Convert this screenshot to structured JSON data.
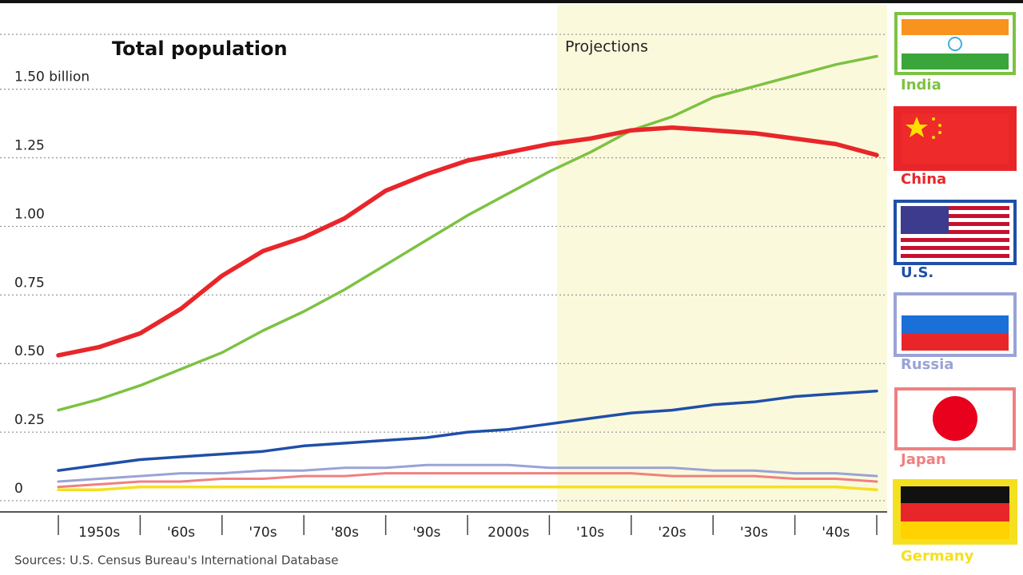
{
  "chart_data": {
    "type": "line",
    "title": "Total population",
    "annotation": "Projections",
    "source": "Sources: U.S. Census Bureau's International Database",
    "categories": [
      null,
      "1950s",
      null,
      "'60s",
      null,
      "'70s",
      null,
      "'80s",
      null,
      "'90s",
      null,
      "2000s",
      null,
      "'10s",
      null,
      "'20s",
      null,
      "'30s",
      null,
      "'40s",
      null
    ],
    "ylim": [
      0,
      1.7
    ],
    "yticks": [
      0,
      0.25,
      {
        "value": 0.5,
        "label": "0.50"
      },
      0.75,
      {
        "value": 1,
        "label": "1.00"
      },
      1.25,
      {
        "value": 1.5,
        "label": "1.50 billion"
      }
    ],
    "grid": true,
    "series": [
      {
        "name": "India",
        "color": "#7dc242",
        "values": [
          0.33,
          0.37,
          0.42,
          0.48,
          0.54,
          0.62,
          0.69,
          0.77,
          0.86,
          0.95,
          1.04,
          1.12,
          1.2,
          1.27,
          1.35,
          1.4,
          1.47,
          1.51,
          1.55,
          1.59,
          1.62
        ]
      },
      {
        "name": "China",
        "color": "#e8262a",
        "values": [
          0.53,
          0.56,
          0.61,
          0.7,
          0.82,
          0.91,
          0.96,
          1.03,
          1.13,
          1.19,
          1.24,
          1.27,
          1.3,
          1.32,
          1.35,
          1.36,
          1.35,
          1.34,
          1.32,
          1.3,
          1.26
        ]
      },
      {
        "name": "U.S.",
        "color": "#1f4fa8",
        "values": [
          0.11,
          0.13,
          0.15,
          0.16,
          0.17,
          0.18,
          0.2,
          0.21,
          0.22,
          0.23,
          0.25,
          0.26,
          0.28,
          0.3,
          0.32,
          0.33,
          0.35,
          0.36,
          0.38,
          0.39,
          0.4
        ]
      },
      {
        "name": "Russia",
        "color": "#9aa3d6",
        "values": [
          0.07,
          0.08,
          0.09,
          0.1,
          0.1,
          0.11,
          0.11,
          0.12,
          0.12,
          0.13,
          0.13,
          0.13,
          0.12,
          0.12,
          0.12,
          0.12,
          0.11,
          0.11,
          0.1,
          0.1,
          0.09
        ]
      },
      {
        "name": "Japan",
        "color": "#f08080",
        "values": [
          0.05,
          0.06,
          0.07,
          0.07,
          0.08,
          0.08,
          0.09,
          0.09,
          0.1,
          0.1,
          0.1,
          0.1,
          0.1,
          0.1,
          0.1,
          0.09,
          0.09,
          0.09,
          0.08,
          0.08,
          0.07
        ]
      },
      {
        "name": "Germany",
        "color": "#f5e020",
        "values": [
          0.04,
          0.04,
          0.05,
          0.05,
          0.05,
          0.05,
          0.05,
          0.05,
          0.05,
          0.05,
          0.05,
          0.05,
          0.05,
          0.05,
          0.05,
          0.05,
          0.05,
          0.05,
          0.05,
          0.05,
          0.04
        ]
      }
    ]
  }
}
